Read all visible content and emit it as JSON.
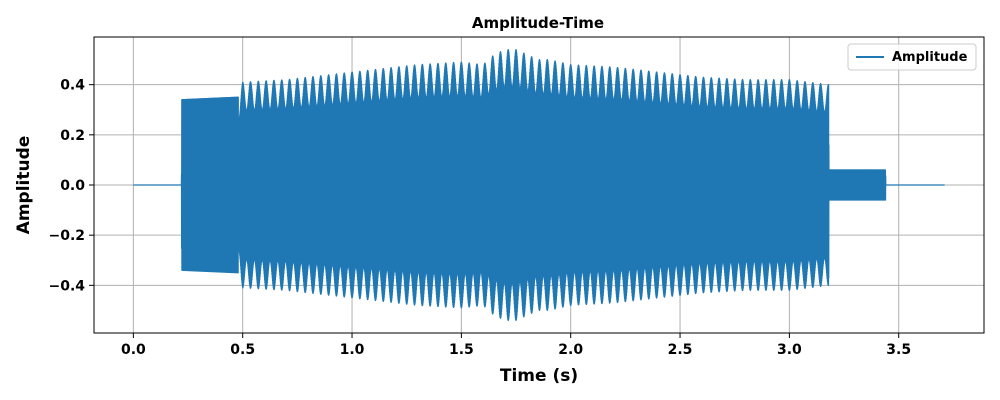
{
  "chart_data": {
    "type": "line",
    "title": "Amplitude-Time",
    "xlabel": "Time (s)",
    "ylabel": "Amplitude",
    "xlim": [
      -0.18,
      3.89
    ],
    "ylim": [
      -0.59,
      0.59
    ],
    "xticks": [
      0.0,
      0.5,
      1.0,
      1.5,
      2.0,
      2.5,
      3.0,
      3.5
    ],
    "xtick_labels": [
      "0.0",
      "0.5",
      "1.0",
      "1.5",
      "2.0",
      "2.5",
      "3.0",
      "3.5"
    ],
    "yticks": [
      -0.4,
      -0.2,
      0.0,
      0.2,
      0.4
    ],
    "ytick_labels": [
      "−0.4",
      "−0.2",
      "0.0",
      "0.2",
      "0.4"
    ],
    "grid": true,
    "legend": {
      "placement": "top-right",
      "entries": [
        "Amplitude"
      ]
    },
    "color": "#1f77b4",
    "series": [
      {
        "name": "Amplitude",
        "envelope": {
          "t": [
            0.0,
            0.22,
            0.221,
            0.48,
            0.5,
            0.7,
            0.9,
            1.1,
            1.3,
            1.5,
            1.6,
            1.65,
            1.7,
            1.75,
            1.8,
            1.85,
            1.9,
            2.0,
            2.2,
            2.4,
            2.6,
            2.8,
            3.0,
            3.18,
            3.181,
            3.44,
            3.441,
            3.71
          ],
          "peak": [
            0.0,
            0.0,
            0.34,
            0.35,
            0.41,
            0.42,
            0.44,
            0.46,
            0.48,
            0.49,
            0.48,
            0.52,
            0.54,
            0.54,
            0.52,
            0.5,
            0.5,
            0.48,
            0.47,
            0.45,
            0.43,
            0.42,
            0.42,
            0.4,
            0.06,
            0.06,
            0.0,
            0.0
          ]
        }
      }
    ]
  }
}
